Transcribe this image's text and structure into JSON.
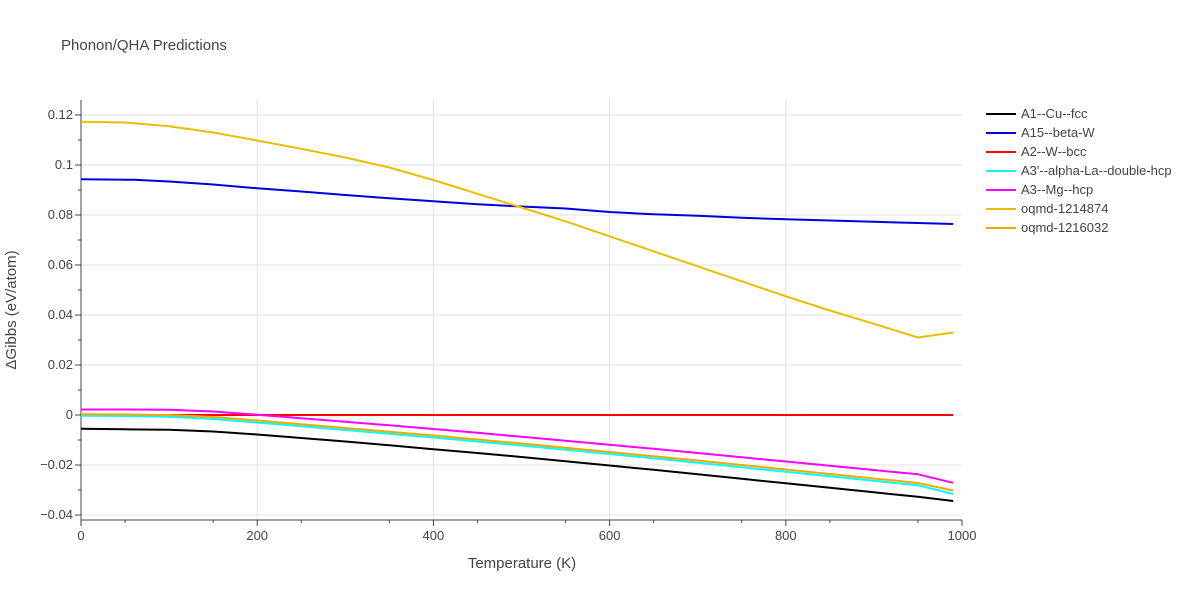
{
  "chart_data": {
    "type": "line",
    "title": "Phonon/QHA Predictions",
    "xlabel": "Temperature (K)",
    "ylabel": "ΔGibbs (eV/atom)",
    "xlim": [
      0,
      1000
    ],
    "ylim": [
      -0.042,
      0.126
    ],
    "x_ticks": [
      0,
      200,
      400,
      600,
      800,
      1000
    ],
    "x_tick_labels": [
      "0",
      "200",
      "400",
      "600",
      "800",
      "1000"
    ],
    "y_ticks": [
      -0.04,
      -0.02,
      0,
      0.02,
      0.04,
      0.06,
      0.08,
      0.1,
      0.12
    ],
    "y_tick_labels": [
      "−0.04",
      "−0.02",
      "0",
      "0.02",
      "0.04",
      "0.06",
      "0.08",
      "0.1",
      "0.12"
    ],
    "grid": true,
    "legend_position": "right",
    "series": [
      {
        "name": "A1--Cu--fcc",
        "color": "#000000",
        "x": [
          0,
          50,
          100,
          150,
          200,
          250,
          300,
          350,
          400,
          450,
          500,
          550,
          600,
          650,
          700,
          750,
          800,
          850,
          900,
          950,
          990
        ],
        "y": [
          -0.0055,
          -0.0057,
          -0.0059,
          -0.0066,
          -0.0078,
          -0.0092,
          -0.0106,
          -0.0121,
          -0.0137,
          -0.0152,
          -0.0168,
          -0.0185,
          -0.0202,
          -0.0219,
          -0.0237,
          -0.0255,
          -0.0273,
          -0.0291,
          -0.0309,
          -0.0327,
          -0.0344
        ]
      },
      {
        "name": "A15--beta-W",
        "color": "#0000dd",
        "x": [
          0,
          60,
          100,
          150,
          200,
          250,
          300,
          350,
          400,
          450,
          500,
          550,
          600,
          650,
          700,
          750,
          800,
          850,
          900,
          950,
          990
        ],
        "y": [
          0.0943,
          0.0941,
          0.0934,
          0.0922,
          0.0907,
          0.0894,
          0.088,
          0.0867,
          0.0855,
          0.0843,
          0.0834,
          0.0826,
          0.0812,
          0.0803,
          0.0797,
          0.0789,
          0.0783,
          0.0778,
          0.0773,
          0.0768,
          0.0764
        ]
      },
      {
        "name": "A2--W--bcc",
        "color": "#ff0000",
        "x": [
          0,
          990
        ],
        "y": [
          0,
          0
        ]
      },
      {
        "name": "A3'--alpha-La--double-hcp",
        "color": "#00ffff",
        "x": [
          0,
          50,
          100,
          150,
          200,
          250,
          300,
          350,
          400,
          450,
          500,
          550,
          600,
          650,
          700,
          750,
          800,
          850,
          900,
          950,
          990
        ],
        "y": [
          -0.0003,
          -0.0004,
          -0.0007,
          -0.0016,
          -0.003,
          -0.0045,
          -0.006,
          -0.0075,
          -0.009,
          -0.0106,
          -0.0122,
          -0.0139,
          -0.0156,
          -0.0173,
          -0.0191,
          -0.0209,
          -0.0227,
          -0.0245,
          -0.0263,
          -0.0281,
          -0.0316
        ]
      },
      {
        "name": "A3--Mg--hcp",
        "color": "#ff00ff",
        "x": [
          0,
          50,
          100,
          150,
          200,
          250,
          300,
          350,
          400,
          450,
          500,
          550,
          600,
          650,
          700,
          750,
          800,
          850,
          900,
          950,
          990
        ],
        "y": [
          0.0022,
          0.0022,
          0.0021,
          0.0014,
          0.0001,
          -0.0013,
          -0.0027,
          -0.0041,
          -0.0056,
          -0.0071,
          -0.0087,
          -0.0103,
          -0.0119,
          -0.0135,
          -0.0152,
          -0.0169,
          -0.0186,
          -0.0203,
          -0.022,
          -0.0237,
          -0.0271
        ]
      },
      {
        "name": "oqmd-1214874",
        "color": "#e6c000",
        "x": [
          0,
          50,
          100,
          150,
          200,
          250,
          300,
          350,
          400,
          450,
          500,
          550,
          600,
          650,
          700,
          750,
          800,
          850,
          900,
          950,
          990
        ],
        "y": [
          0.1173,
          0.117,
          0.1155,
          0.113,
          0.1098,
          0.1065,
          0.103,
          0.099,
          0.094,
          0.0885,
          0.083,
          0.0775,
          0.0715,
          0.0655,
          0.0595,
          0.0535,
          0.0475,
          0.0418,
          0.0365,
          0.031,
          0.033
        ]
      },
      {
        "name": "oqmd-1216032",
        "color": "#f2a800",
        "x": [
          0,
          50,
          100,
          150,
          200,
          250,
          300,
          350,
          400,
          450,
          500,
          550,
          600,
          650,
          700,
          750,
          800,
          850,
          900,
          950,
          990
        ],
        "y": [
          0.0003,
          0.0002,
          0.0,
          -0.0008,
          -0.0022,
          -0.0037,
          -0.0052,
          -0.0067,
          -0.0082,
          -0.0098,
          -0.0114,
          -0.0131,
          -0.0148,
          -0.0165,
          -0.0182,
          -0.02,
          -0.0218,
          -0.0236,
          -0.0254,
          -0.0272,
          -0.0302
        ]
      }
    ]
  }
}
